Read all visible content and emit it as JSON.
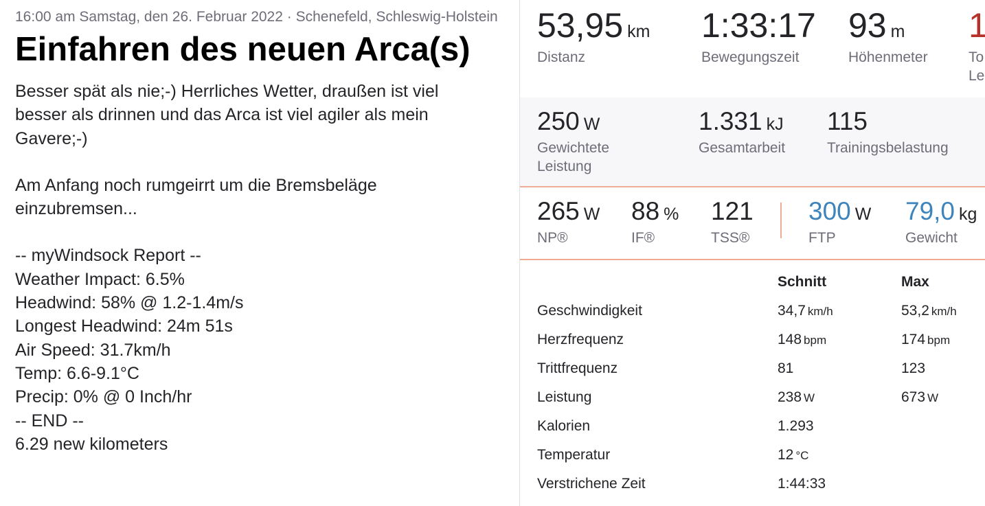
{
  "header": {
    "meta": "16:00 am Samstag, den 26. Februar 2022 · Schenefeld, Schleswig-Holstein",
    "title": "Einfahren des neuen Arca(s)"
  },
  "description": [
    [
      "Besser spät als nie;-) Herrliches Wetter, draußen ist viel",
      "besser als drinnen und das Arca ist viel agiler als mein",
      "Gavere;-)"
    ],
    [
      "Am Anfang noch rumgeirrt um die Bremsbeläge",
      "einzubremsen..."
    ],
    [
      "-- myWindsock Report --",
      "Weather Impact: 6.5%",
      "Headwind: 58% @ 1.2-1.4m/s",
      "Longest Headwind: 24m 51s",
      "Air Speed: 31.7km/h",
      "Temp: 6.6-9.1°C",
      "Precip: 0% @ 0 Inch/hr",
      "-- END --",
      "6.29 new kilometers"
    ]
  ],
  "primary_stats": [
    {
      "value": "53,95",
      "unit": "km",
      "label": [
        "Distanz"
      ]
    },
    {
      "value": "1:33:17",
      "label": [
        "Bewegungszeit"
      ]
    },
    {
      "value": "93",
      "unit": "m",
      "label": [
        "Höhenmeter"
      ]
    },
    {
      "value": "1",
      "label": [
        "To",
        "Le"
      ]
    }
  ],
  "secondary_stats": [
    {
      "value": "250",
      "unit": "W",
      "label": [
        "Gewichtete",
        "Leistung"
      ]
    },
    {
      "value": "1.331",
      "unit": "kJ",
      "label": [
        "Gesamtarbeit"
      ]
    },
    {
      "value": "115",
      "label": [
        "Trainingsbelastung"
      ]
    }
  ],
  "power_stats": [
    {
      "value": "265",
      "unit": "W",
      "label": "NP®"
    },
    {
      "value": "88",
      "unit": "%",
      "label": "IF®"
    },
    {
      "value": "121",
      "label": "TSS®"
    },
    {
      "value": "300",
      "unit": "W",
      "label": "FTP"
    },
    {
      "value": "79,0",
      "unit": "kg",
      "label": "Gewicht"
    }
  ],
  "table": {
    "headers": [
      "Schnitt",
      "Max"
    ],
    "rows": [
      {
        "name": "Geschwindigkeit",
        "avg": "34,7",
        "avg_unit": "km/h",
        "max": "53,2",
        "max_unit": "km/h"
      },
      {
        "name": "Herzfrequenz",
        "avg": "148",
        "avg_unit": "bpm",
        "max": "174",
        "max_unit": "bpm"
      },
      {
        "name": "Trittfrequenz",
        "avg": "81",
        "max": "123"
      },
      {
        "name": "Leistung",
        "avg": "238",
        "avg_unit": "W",
        "max": "673",
        "max_unit": "W"
      },
      {
        "name": "Kalorien",
        "avg": "1.293"
      },
      {
        "name": "Temperatur",
        "avg": "12",
        "avg_unit": "°C"
      },
      {
        "name": "Verstrichene Zeit",
        "avg": "1:44:33"
      }
    ]
  }
}
